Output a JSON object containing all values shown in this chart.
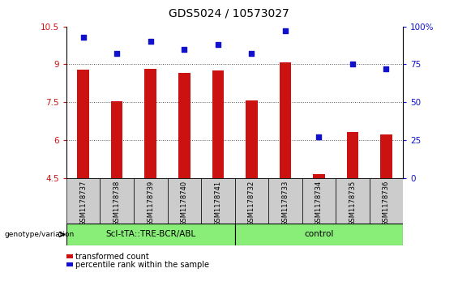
{
  "title": "GDS5024 / 10573027",
  "samples": [
    "GSM1178737",
    "GSM1178738",
    "GSM1178739",
    "GSM1178740",
    "GSM1178741",
    "GSM1178732",
    "GSM1178733",
    "GSM1178734",
    "GSM1178735",
    "GSM1178736"
  ],
  "bar_values": [
    8.8,
    7.55,
    8.82,
    8.67,
    8.75,
    7.58,
    9.08,
    4.65,
    6.32,
    6.22
  ],
  "dot_values": [
    93,
    82,
    90,
    85,
    88,
    82,
    97,
    27,
    75,
    72
  ],
  "ylim_left": [
    4.5,
    10.5
  ],
  "ylim_right": [
    0,
    100
  ],
  "yticks_left": [
    4.5,
    6.0,
    7.5,
    9.0,
    10.5
  ],
  "ytick_labels_left": [
    "4.5",
    "6",
    "7.5",
    "9",
    "10.5"
  ],
  "yticks_right": [
    0,
    25,
    50,
    75,
    100
  ],
  "ytick_labels_right": [
    "0",
    "25",
    "50",
    "75",
    "100%"
  ],
  "grid_yticks": [
    6.0,
    7.5,
    9.0
  ],
  "bar_color": "#cc1111",
  "dot_color": "#1111cc",
  "grid_color": "#555555",
  "group1_label": "Scl-tTA::TRE-BCR/ABL",
  "group2_label": "control",
  "group1_count": 5,
  "group2_count": 5,
  "group_bg_color": "#88ee77",
  "sample_bg_color": "#cccccc",
  "legend_bar_label": "transformed count",
  "legend_dot_label": "percentile rank within the sample",
  "genotype_label": "genotype/variation",
  "title_fontsize": 10,
  "tick_fontsize": 7.5,
  "sample_fontsize": 6,
  "group_fontsize": 7.5,
  "legend_fontsize": 7,
  "bar_width": 0.35
}
